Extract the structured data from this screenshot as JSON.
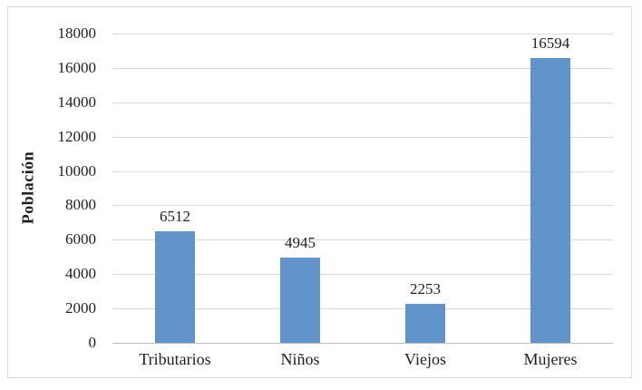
{
  "chart_data": {
    "type": "bar",
    "title": "",
    "categories": [
      "Tributarios",
      "Niños",
      "Viejos",
      "Mujeres"
    ],
    "values": [
      6512,
      4945,
      2253,
      16594
    ],
    "data_labels": [
      "6512",
      "4945",
      "2253",
      "16594"
    ],
    "xlabel": "",
    "ylabel": "Población",
    "ylim": [
      0,
      18000
    ],
    "ytick_step": 2000,
    "ytick_labels": [
      "0",
      "2000",
      "4000",
      "6000",
      "8000",
      "10000",
      "12000",
      "14000",
      "16000",
      "18000"
    ],
    "grid": true,
    "legend_position": "none",
    "colors": {
      "bar": "#6094CA",
      "gridline": "#D9D9D9",
      "axis_line": "#BFBFBF",
      "text": "#1F1F1F",
      "frame_border": "#D9D9D9",
      "background": "#FFFFFF"
    }
  }
}
